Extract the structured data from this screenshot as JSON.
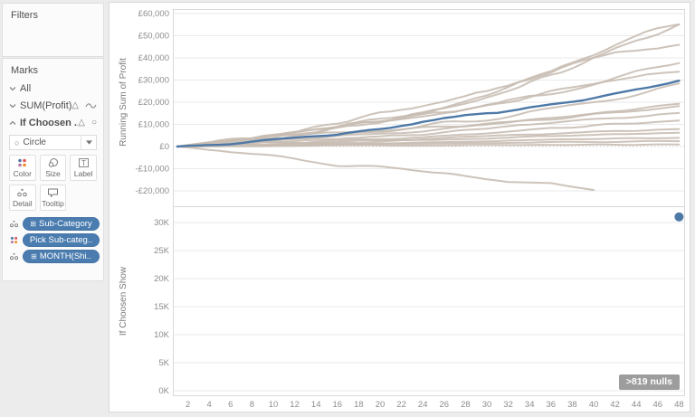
{
  "sidebar": {
    "filters": {
      "title": "Filters"
    },
    "marks": {
      "title": "Marks",
      "rows": [
        {
          "label": "All",
          "state": "collapsed",
          "icons": []
        },
        {
          "label": "SUM(Profit)",
          "state": "collapsed",
          "icons": [
            "delta",
            "line"
          ]
        },
        {
          "label": "If Choosen ...",
          "state": "expanded",
          "icons": [
            "delta",
            "circle"
          ]
        }
      ],
      "mark_type": "Circle",
      "buttons": [
        {
          "label": "Color"
        },
        {
          "label": "Size"
        },
        {
          "label": "Label"
        },
        {
          "label": "Detail"
        },
        {
          "label": "Tooltip"
        }
      ],
      "pills": [
        {
          "label": "Sub-Category",
          "icon": "detail",
          "has_plus": true
        },
        {
          "label": "Pick Sub-categ..",
          "icon": "color",
          "has_plus": false
        },
        {
          "label": "MONTH(Shi..",
          "icon": "detail",
          "has_plus": true
        }
      ]
    }
  },
  "colors": {
    "highlight": "#4e79a7",
    "context_line": "#c8bcb3",
    "gridline": "#eaeaea",
    "zero_line": "#cccccc",
    "border": "#d9d9d9",
    "tick_text": "#8c8c8c",
    "pill": "#4a7caf",
    "badge_bg": "#9d9d9d"
  },
  "chart_data": [
    {
      "type": "line",
      "title": "",
      "xlabel": "",
      "ylabel": "Running Sum of Profit",
      "x_ticks": [
        2,
        4,
        6,
        8,
        10,
        12,
        14,
        16,
        18,
        20,
        22,
        24,
        26,
        28,
        30,
        32,
        34,
        36,
        38,
        40,
        42,
        44,
        46,
        48
      ],
      "xlim": [
        1,
        48
      ],
      "ylim": [
        -26000,
        62000
      ],
      "y_ticks": [
        60000,
        50000,
        40000,
        30000,
        20000,
        10000,
        0,
        -10000,
        -20000
      ],
      "y_tick_labels": [
        "£60,000",
        "£50,000",
        "£40,000",
        "£30,000",
        "£20,000",
        "£10,000",
        "£0",
        "-£10,000",
        "-£20,000"
      ],
      "grid": "horizontal",
      "legend": "none",
      "series": [
        {
          "name": "context-1",
          "role": "context",
          "points": [
            [
              1,
              0
            ],
            [
              6,
              2500
            ],
            [
              12,
              6000
            ],
            [
              18,
              11000
            ],
            [
              24,
              16000
            ],
            [
              30,
              24000
            ],
            [
              36,
              34000
            ],
            [
              42,
              46000
            ],
            [
              48,
              57000
            ]
          ]
        },
        {
          "name": "context-2",
          "role": "context",
          "points": [
            [
              1,
              0
            ],
            [
              6,
              2000
            ],
            [
              12,
              5500
            ],
            [
              18,
              10000
            ],
            [
              24,
              15500
            ],
            [
              30,
              22000
            ],
            [
              36,
              32000
            ],
            [
              42,
              44000
            ],
            [
              48,
              55500
            ]
          ]
        },
        {
          "name": "context-3",
          "role": "context",
          "points": [
            [
              1,
              0
            ],
            [
              6,
              3000
            ],
            [
              12,
              7000
            ],
            [
              18,
              12000
            ],
            [
              24,
              18000
            ],
            [
              30,
              25000
            ],
            [
              36,
              33000
            ],
            [
              42,
              43000
            ],
            [
              48,
              46500
            ]
          ]
        },
        {
          "name": "context-4",
          "role": "context",
          "points": [
            [
              1,
              0
            ],
            [
              6,
              2000
            ],
            [
              12,
              5000
            ],
            [
              18,
              9000
            ],
            [
              24,
              13000
            ],
            [
              30,
              18000
            ],
            [
              36,
              24000
            ],
            [
              42,
              31000
            ],
            [
              48,
              37500
            ]
          ]
        },
        {
          "name": "context-5",
          "role": "context",
          "points": [
            [
              1,
              0
            ],
            [
              6,
              2500
            ],
            [
              12,
              6000
            ],
            [
              18,
              10000
            ],
            [
              24,
              14000
            ],
            [
              30,
              19000
            ],
            [
              36,
              24500
            ],
            [
              42,
              30000
            ],
            [
              48,
              34000
            ]
          ]
        },
        {
          "name": "context-6",
          "role": "context",
          "points": [
            [
              1,
              0
            ],
            [
              6,
              1500
            ],
            [
              12,
              4000
            ],
            [
              18,
              6500
            ],
            [
              24,
              9500
            ],
            [
              30,
              13000
            ],
            [
              36,
              17000
            ],
            [
              42,
              22000
            ],
            [
              48,
              28000
            ]
          ]
        },
        {
          "name": "context-7",
          "role": "context",
          "points": [
            [
              1,
              0
            ],
            [
              6,
              1000
            ],
            [
              12,
              3000
            ],
            [
              18,
              5000
            ],
            [
              24,
              7500
            ],
            [
              30,
              10000
            ],
            [
              36,
              13000
            ],
            [
              42,
              16000
            ],
            [
              48,
              19000
            ]
          ]
        },
        {
          "name": "context-8",
          "role": "context",
          "points": [
            [
              1,
              0
            ],
            [
              6,
              1500
            ],
            [
              12,
              3500
            ],
            [
              18,
              6000
            ],
            [
              24,
              8000
            ],
            [
              30,
              10000
            ],
            [
              36,
              12500
            ],
            [
              42,
              15000
            ],
            [
              48,
              17500
            ]
          ]
        },
        {
          "name": "context-9",
          "role": "context",
          "points": [
            [
              1,
              0
            ],
            [
              6,
              1000
            ],
            [
              12,
              2500
            ],
            [
              18,
              4000
            ],
            [
              24,
              6000
            ],
            [
              30,
              8000
            ],
            [
              36,
              10500
            ],
            [
              42,
              13000
            ],
            [
              48,
              15500
            ]
          ]
        },
        {
          "name": "context-10",
          "role": "context",
          "points": [
            [
              1,
              0
            ],
            [
              6,
              800
            ],
            [
              12,
              2000
            ],
            [
              18,
              3200
            ],
            [
              24,
              4500
            ],
            [
              30,
              6000
            ],
            [
              36,
              8000
            ],
            [
              42,
              10000
            ],
            [
              48,
              12000
            ]
          ]
        },
        {
          "name": "context-11",
          "role": "context",
          "points": [
            [
              1,
              0
            ],
            [
              6,
              600
            ],
            [
              12,
              1500
            ],
            [
              18,
              2500
            ],
            [
              24,
              3500
            ],
            [
              30,
              4500
            ],
            [
              36,
              5800
            ],
            [
              42,
              7000
            ],
            [
              48,
              8000
            ]
          ]
        },
        {
          "name": "context-12",
          "role": "context",
          "points": [
            [
              1,
              0
            ],
            [
              6,
              500
            ],
            [
              12,
              1200
            ],
            [
              18,
              2000
            ],
            [
              24,
              2800
            ],
            [
              30,
              3600
            ],
            [
              36,
              4600
            ],
            [
              42,
              5500
            ],
            [
              48,
              6500
            ]
          ]
        },
        {
          "name": "context-13",
          "role": "context",
          "points": [
            [
              1,
              0
            ],
            [
              6,
              300
            ],
            [
              12,
              800
            ],
            [
              18,
              1300
            ],
            [
              24,
              1900
            ],
            [
              30,
              2400
            ],
            [
              36,
              3000
            ],
            [
              42,
              3500
            ],
            [
              48,
              4000
            ]
          ]
        },
        {
          "name": "context-14",
          "role": "context",
          "points": [
            [
              1,
              0
            ],
            [
              6,
              200
            ],
            [
              12,
              500
            ],
            [
              18,
              900
            ],
            [
              24,
              1200
            ],
            [
              30,
              1600
            ],
            [
              36,
              1900
            ],
            [
              42,
              2200
            ],
            [
              48,
              2500
            ]
          ]
        },
        {
          "name": "context-15",
          "role": "context",
          "points": [
            [
              1,
              0
            ],
            [
              6,
              100
            ],
            [
              12,
              200
            ],
            [
              18,
              400
            ],
            [
              24,
              500
            ],
            [
              30,
              700
            ],
            [
              36,
              800
            ],
            [
              42,
              900
            ],
            [
              48,
              1000
            ]
          ]
        },
        {
          "name": "declining",
          "role": "context",
          "points": [
            [
              1,
              0
            ],
            [
              4,
              -1500
            ],
            [
              8,
              -3500
            ],
            [
              12,
              -6000
            ],
            [
              16,
              -8500
            ],
            [
              20,
              -9500
            ],
            [
              24,
              -11000
            ],
            [
              28,
              -13500
            ],
            [
              32,
              -16000
            ],
            [
              36,
              -16500
            ],
            [
              40,
              -19500
            ]
          ]
        },
        {
          "name": "highlighted-pick",
          "role": "highlight",
          "points": [
            [
              1,
              0
            ],
            [
              6,
              1500
            ],
            [
              12,
              4000
            ],
            [
              18,
              7000
            ],
            [
              24,
              11000
            ],
            [
              30,
              14500
            ],
            [
              36,
              18500
            ],
            [
              42,
              24000
            ],
            [
              48,
              30500
            ]
          ]
        }
      ]
    },
    {
      "type": "scatter",
      "title": "",
      "xlabel": "",
      "ylabel": "If Choosen Show",
      "xlim": [
        1,
        48
      ],
      "ylim": [
        0,
        32000
      ],
      "y_ticks": [
        30000,
        25000,
        20000,
        15000,
        10000,
        5000,
        0
      ],
      "y_tick_labels": [
        "30K",
        "25K",
        "20K",
        "15K",
        "10K",
        "5K",
        "0K"
      ],
      "grid": "horizontal",
      "points": [
        {
          "x": 48,
          "y": 31000
        }
      ],
      "annotation": ">819 nulls"
    }
  ]
}
